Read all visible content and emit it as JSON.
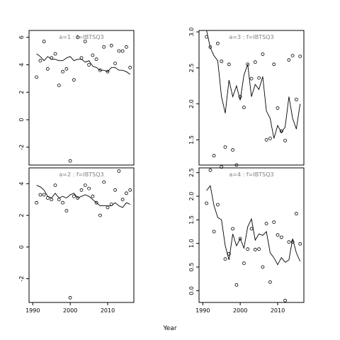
{
  "chart_data": {
    "type": "scatter",
    "layout": "2x2 panels",
    "xlabel": "Year",
    "x_ticks": [
      1990,
      2000,
      2010
    ],
    "xlim": [
      1989,
      2017
    ],
    "panels": [
      {
        "title": "a=1  :  f=IBTSQ3",
        "ylim": [
          -3.3,
          6.5
        ],
        "y_ticks": [
          -2,
          0,
          2,
          4,
          6
        ],
        "x": [
          1991,
          1992,
          1993,
          1994,
          1995,
          1996,
          1997,
          1998,
          1999,
          2000,
          2001,
          2002,
          2003,
          2004,
          2005,
          2006,
          2007,
          2008,
          2009,
          2010,
          2011,
          2012,
          2013,
          2014,
          2015,
          2016
        ],
        "points": [
          3.1,
          4.3,
          5.7,
          3.7,
          4.5,
          4.8,
          2.5,
          3.5,
          3.7,
          -3.0,
          2.9,
          6.0,
          4.5,
          5.7,
          4.0,
          4.7,
          4.4,
          3.6,
          5.3,
          3.5,
          5.4,
          4.1,
          5.0,
          5.0,
          5.3,
          3.8
        ],
        "fitted": [
          4.8,
          4.6,
          4.3,
          4.6,
          4.4,
          4.4,
          4.3,
          4.3,
          4.5,
          4.6,
          4.3,
          4.4,
          4.4,
          4.2,
          4.3,
          3.9,
          3.8,
          3.6,
          3.6,
          3.5,
          3.8,
          3.8,
          3.6,
          3.6,
          3.5,
          3.3
        ]
      },
      {
        "title": "a=3  :  f=IBTSQ3",
        "ylim": [
          1.15,
          3.02
        ],
        "y_ticks": [
          1.5,
          2.0,
          2.5,
          3.0
        ],
        "x": [
          1991,
          1992,
          1993,
          1994,
          1995,
          1996,
          1997,
          1998,
          1999,
          2000,
          2001,
          2002,
          2003,
          2004,
          2005,
          2006,
          2007,
          2008,
          2009,
          2010,
          2011,
          2012,
          2013,
          2014,
          2015,
          2016
        ],
        "points": [
          2.93,
          2.79,
          1.28,
          2.84,
          2.59,
          1.4,
          2.55,
          1.36,
          1.15,
          2.1,
          1.95,
          2.55,
          2.35,
          2.58,
          2.36,
          2.69,
          1.5,
          1.52,
          2.55,
          1.94,
          1.62,
          1.49,
          2.61,
          2.67,
          2.06,
          2.66
        ],
        "fitted": [
          3.05,
          2.78,
          2.67,
          2.6,
          2.1,
          1.87,
          2.33,
          2.1,
          2.25,
          2.05,
          2.4,
          2.55,
          2.1,
          2.27,
          2.2,
          2.38,
          1.9,
          1.8,
          1.52,
          1.7,
          1.6,
          1.68,
          2.1,
          1.8,
          1.65,
          2.0
        ]
      },
      {
        "title": "a=2  :  f=IBTSQ3",
        "ylim": [
          -3.5,
          5.0
        ],
        "y_ticks": [
          -2,
          0,
          2,
          4
        ],
        "x": [
          1991,
          1992,
          1993,
          1994,
          1995,
          1996,
          1997,
          1998,
          1999,
          2000,
          2001,
          2002,
          2003,
          2004,
          2005,
          2006,
          2007,
          2008,
          2009,
          2010,
          2011,
          2012,
          2013,
          2014,
          2015,
          2016
        ],
        "points": [
          2.8,
          3.3,
          3.3,
          3.1,
          3.0,
          3.9,
          3.0,
          2.8,
          2.3,
          -3.2,
          3.2,
          3.1,
          3.6,
          3.9,
          3.7,
          3.2,
          2.8,
          2.0,
          4.1,
          2.5,
          2.7,
          3.6,
          4.8,
          3.0,
          3.4,
          3.6
        ],
        "fitted": [
          3.9,
          3.8,
          3.6,
          3.2,
          3.1,
          3.4,
          3.1,
          3.2,
          3.1,
          3.3,
          3.4,
          3.1,
          3.2,
          3.3,
          3.2,
          3.0,
          2.8,
          2.6,
          2.6,
          2.6,
          2.6,
          2.8,
          2.6,
          2.5,
          2.8,
          2.7
        ]
      },
      {
        "title": "a=4  :  f=IBTSQ3",
        "ylim": [
          -0.25,
          2.6
        ],
        "y_ticks": [
          0.0,
          0.5,
          1.0,
          1.5,
          2.0,
          2.5
        ],
        "x": [
          1991,
          1992,
          1993,
          1994,
          1995,
          1996,
          1997,
          1998,
          1999,
          2000,
          2001,
          2002,
          2003,
          2004,
          2005,
          2006,
          2007,
          2008,
          2009,
          2010,
          2011,
          2012,
          2013,
          2014,
          2015,
          2016
        ],
        "points": [
          1.85,
          2.55,
          1.25,
          1.82,
          2.62,
          0.67,
          0.78,
          1.31,
          0.12,
          1.1,
          0.58,
          0.88,
          1.31,
          0.87,
          0.88,
          0.5,
          1.42,
          0.18,
          1.45,
          1.18,
          1.13,
          -0.21,
          1.03,
          1.03,
          1.63,
          0.99
        ],
        "fitted": [
          2.12,
          2.22,
          1.8,
          1.55,
          1.5,
          0.95,
          0.65,
          1.2,
          0.95,
          1.1,
          0.9,
          1.35,
          1.52,
          1.07,
          1.2,
          1.17,
          1.25,
          0.8,
          0.7,
          0.55,
          0.7,
          0.6,
          0.65,
          1.1,
          0.8,
          0.62
        ]
      }
    ]
  }
}
